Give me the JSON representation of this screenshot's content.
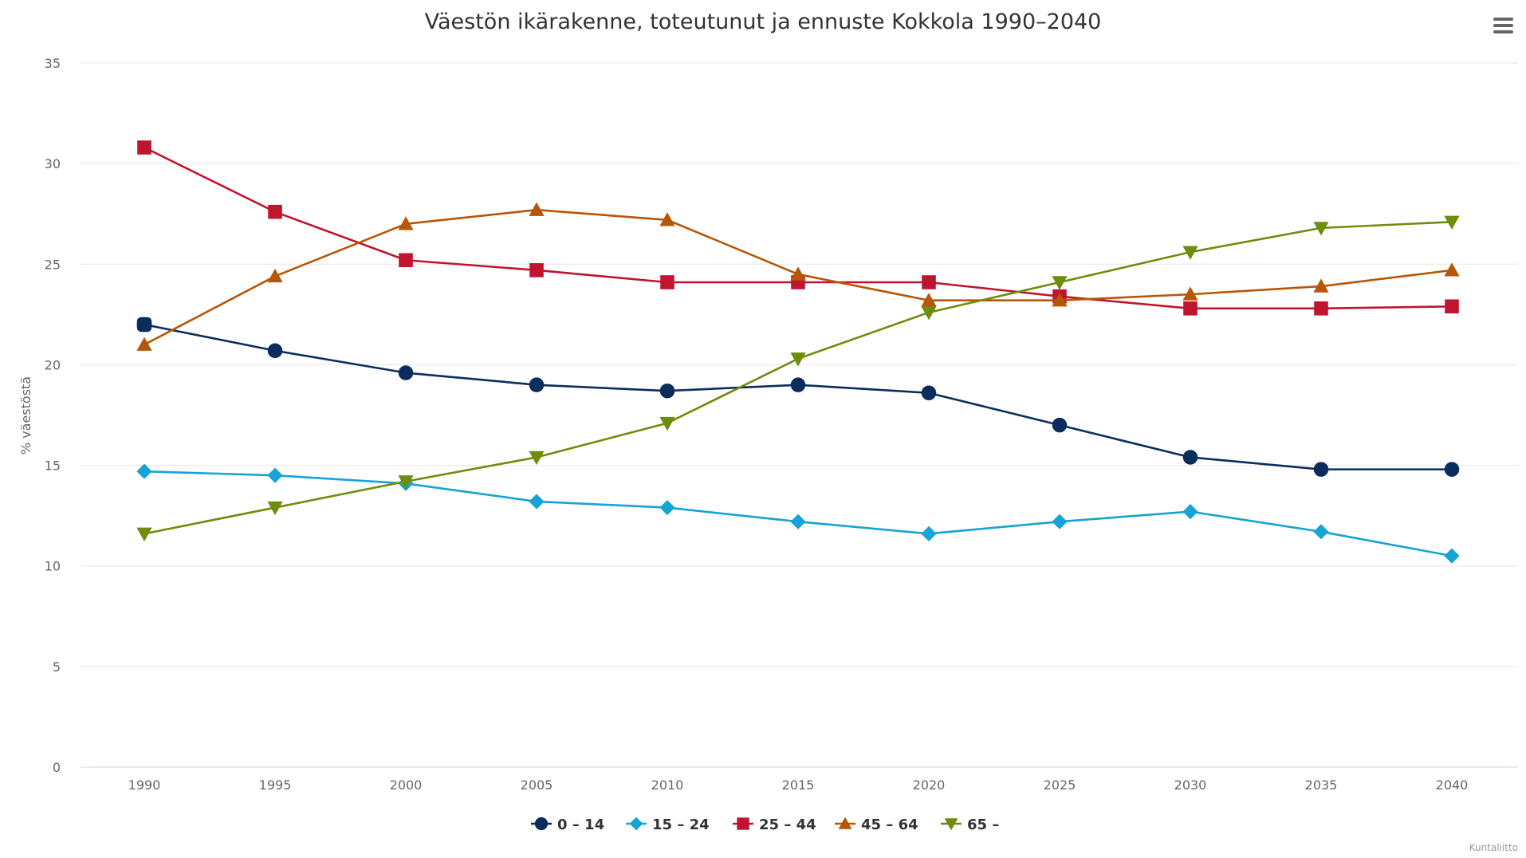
{
  "chart_data": {
    "type": "line",
    "title": "Väestön ikärakenne, toteutunut ja ennuste Kokkola 1990–2040",
    "xlabel": "",
    "ylabel": "% väestöstä",
    "x": [
      "1990",
      "1995",
      "2000",
      "2005",
      "2010",
      "2015",
      "2020",
      "2025",
      "2030",
      "2035",
      "2040"
    ],
    "ylim": [
      0,
      35
    ],
    "yticks": [
      "0",
      "5",
      "10",
      "15",
      "20",
      "25",
      "30",
      "35"
    ],
    "grid": true,
    "legend_position": "bottom-center",
    "credit": "Kuntaliitto",
    "highlighted_point": {
      "series": "0 – 14",
      "x": "1990"
    },
    "series": [
      {
        "name": "0 – 14",
        "color": "#0b2d5e",
        "marker": "circle",
        "values": [
          22.0,
          20.7,
          19.6,
          19.0,
          18.7,
          19.0,
          18.6,
          17.0,
          15.4,
          14.8,
          14.8
        ]
      },
      {
        "name": "15 – 24",
        "color": "#16a3d6",
        "marker": "diamond",
        "values": [
          14.7,
          14.5,
          14.1,
          13.2,
          12.9,
          12.2,
          11.6,
          12.2,
          12.7,
          11.7,
          10.5
        ]
      },
      {
        "name": "25 – 44",
        "color": "#c0152f",
        "marker": "square",
        "values": [
          30.8,
          27.6,
          25.2,
          24.7,
          24.1,
          24.1,
          24.1,
          23.4,
          22.8,
          22.8,
          22.9
        ]
      },
      {
        "name": "45 – 64",
        "color": "#b85607",
        "marker": "triangle-up",
        "values": [
          21.0,
          24.4,
          27.0,
          27.7,
          27.2,
          24.5,
          23.2,
          23.2,
          23.5,
          23.9,
          24.7
        ]
      },
      {
        "name": "65 –",
        "color": "#6e8d0a",
        "marker": "triangle-down",
        "values": [
          11.6,
          12.9,
          14.2,
          15.4,
          17.1,
          20.3,
          22.6,
          24.1,
          25.6,
          26.8,
          27.1
        ]
      }
    ]
  },
  "toolbar": {
    "menu_icon": "hamburger-menu-icon"
  }
}
